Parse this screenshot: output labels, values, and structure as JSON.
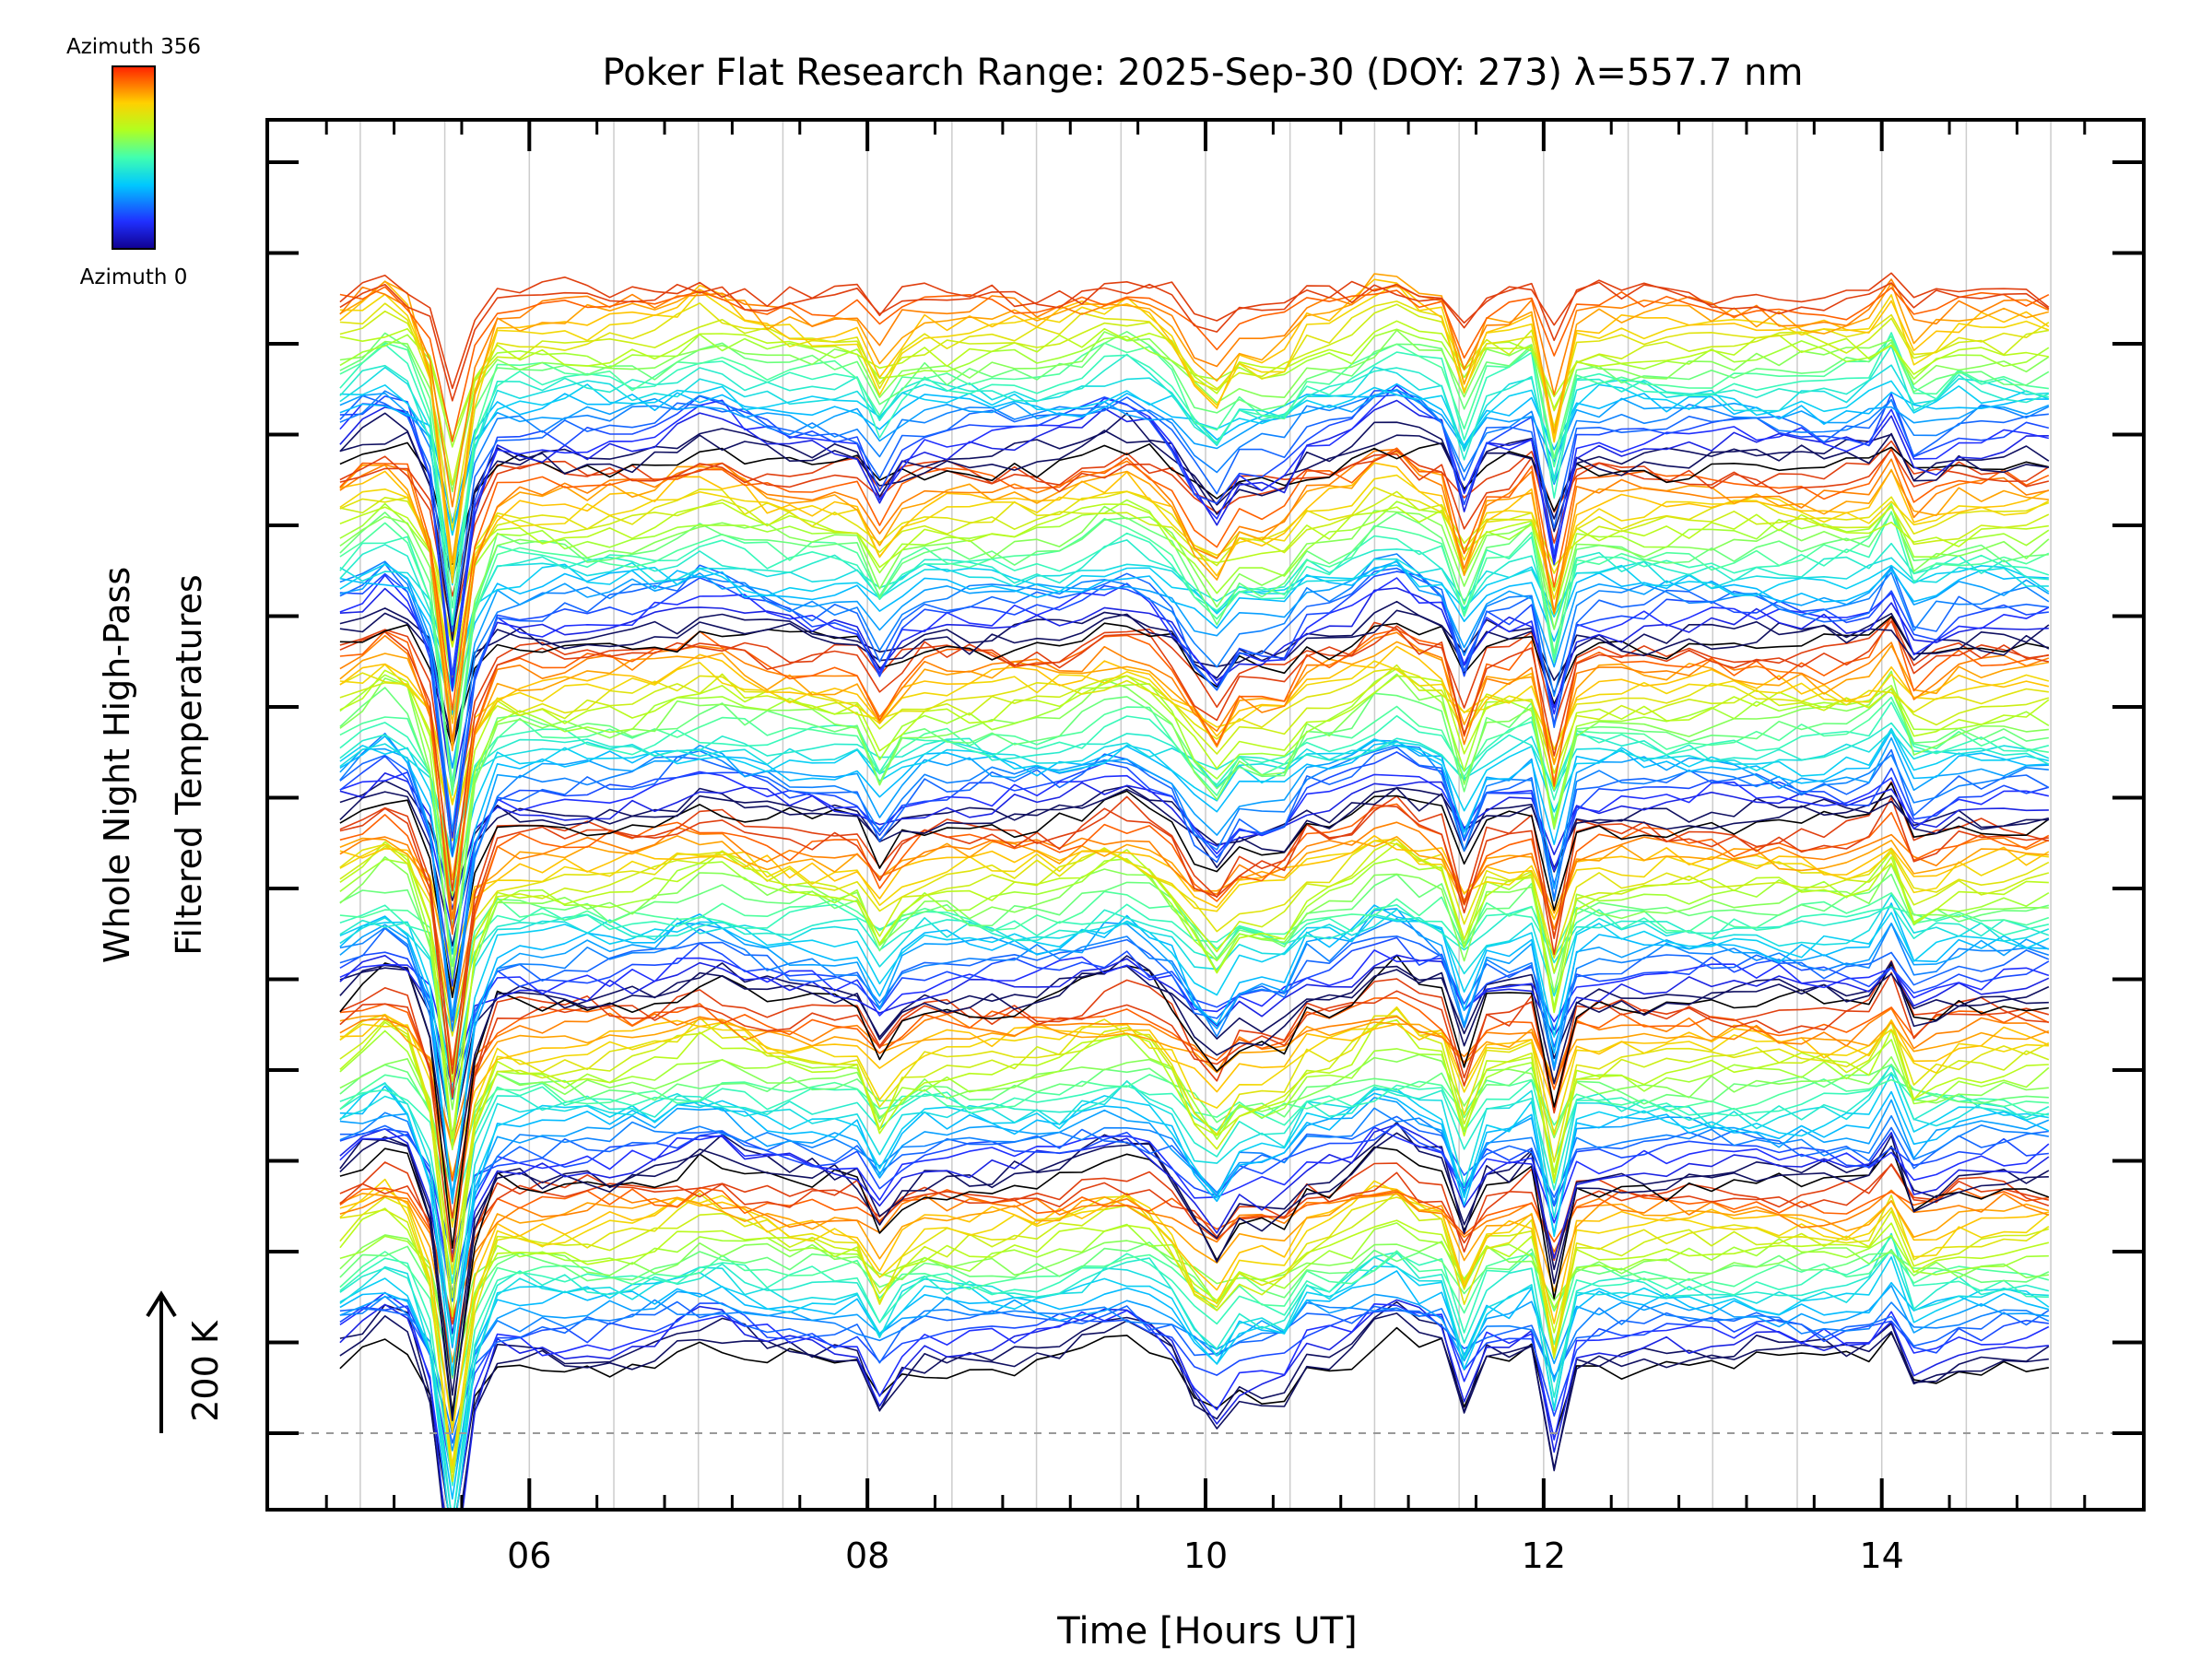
{
  "chart_data": {
    "type": "line",
    "title": "Poker Flat Research Range: 2025-Sep-30 (DOY: 273) λ=557.7 nm",
    "xlabel": "Time [Hours UT]",
    "ylabel_line1": "Whole Night High-Pass",
    "ylabel_line2": "Filtered Temperatures",
    "scale_label": "200 K",
    "scale_value_K": 200,
    "colorbar": {
      "top_label": "Azimuth 356",
      "bottom_label": "Azimuth 0",
      "min": 0,
      "max": 356,
      "colormap": "rainbow"
    },
    "x_ticks": [
      {
        "value": 6,
        "label": "06"
      },
      {
        "value": 8,
        "label": "08"
      },
      {
        "value": 10,
        "label": "10"
      },
      {
        "value": 12,
        "label": "12"
      },
      {
        "value": 14,
        "label": "14"
      }
    ],
    "xlim": [
      4.45,
      15.55
    ],
    "x_minor_step": 0.4,
    "y_tick_count": 15,
    "grid": {
      "vertical": true,
      "horizontal": false
    },
    "baseline_dashed": true,
    "series_groups": 6,
    "series_per_group": 28,
    "time_start": 4.88,
    "time_end": 15.0,
    "time_step": 0.133,
    "colors": {
      "group_start": "#1a1a9a",
      "group_start_dark": "#101060",
      "group_end": "#e04010",
      "group_dark": "#000000",
      "grid": "#cccccc",
      "axis": "#000000"
    }
  }
}
